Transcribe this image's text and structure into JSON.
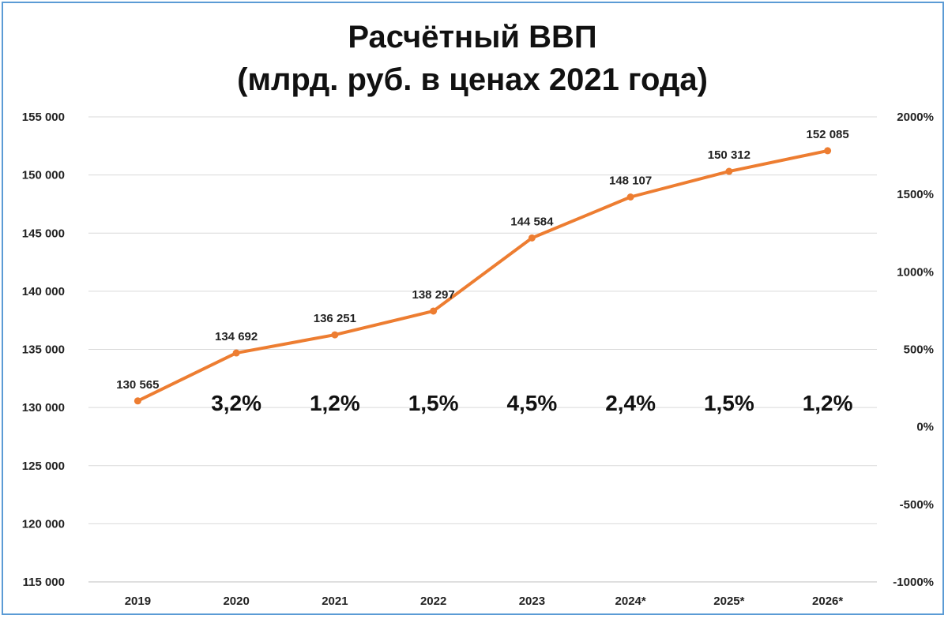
{
  "chart_data": {
    "type": "line",
    "title_lines": [
      "Расчётный ВВП",
      "(млрд. руб. в ценах 2021 года)"
    ],
    "categories": [
      "2019",
      "2020",
      "2021",
      "2022",
      "2023",
      "2024*",
      "2025*",
      "2026*"
    ],
    "series": [
      {
        "values": [
          130565,
          134692,
          136251,
          138297,
          144584,
          148107,
          150312,
          152085
        ],
        "labels": [
          "130 565",
          "134 692",
          "136 251",
          "138 297",
          "144 584",
          "148 107",
          "150 312",
          "152 085"
        ],
        "color": "#ed7d31"
      }
    ],
    "growth_labels": [
      "3,2%",
      "1,2%",
      "1,5%",
      "4,5%",
      "2,4%",
      "1,5%",
      "1,2%"
    ],
    "ylim": [
      115000,
      155000
    ],
    "yticks": [
      "115 000",
      "120 000",
      "125 000",
      "130 000",
      "135 000",
      "140 000",
      "145 000",
      "150 000",
      "155 000"
    ],
    "y2lim": [
      -1000,
      2000
    ],
    "y2ticks": [
      "-1000%",
      "-500%",
      "0%",
      "500%",
      "1000%",
      "1500%",
      "2000%"
    ],
    "grid": true
  }
}
